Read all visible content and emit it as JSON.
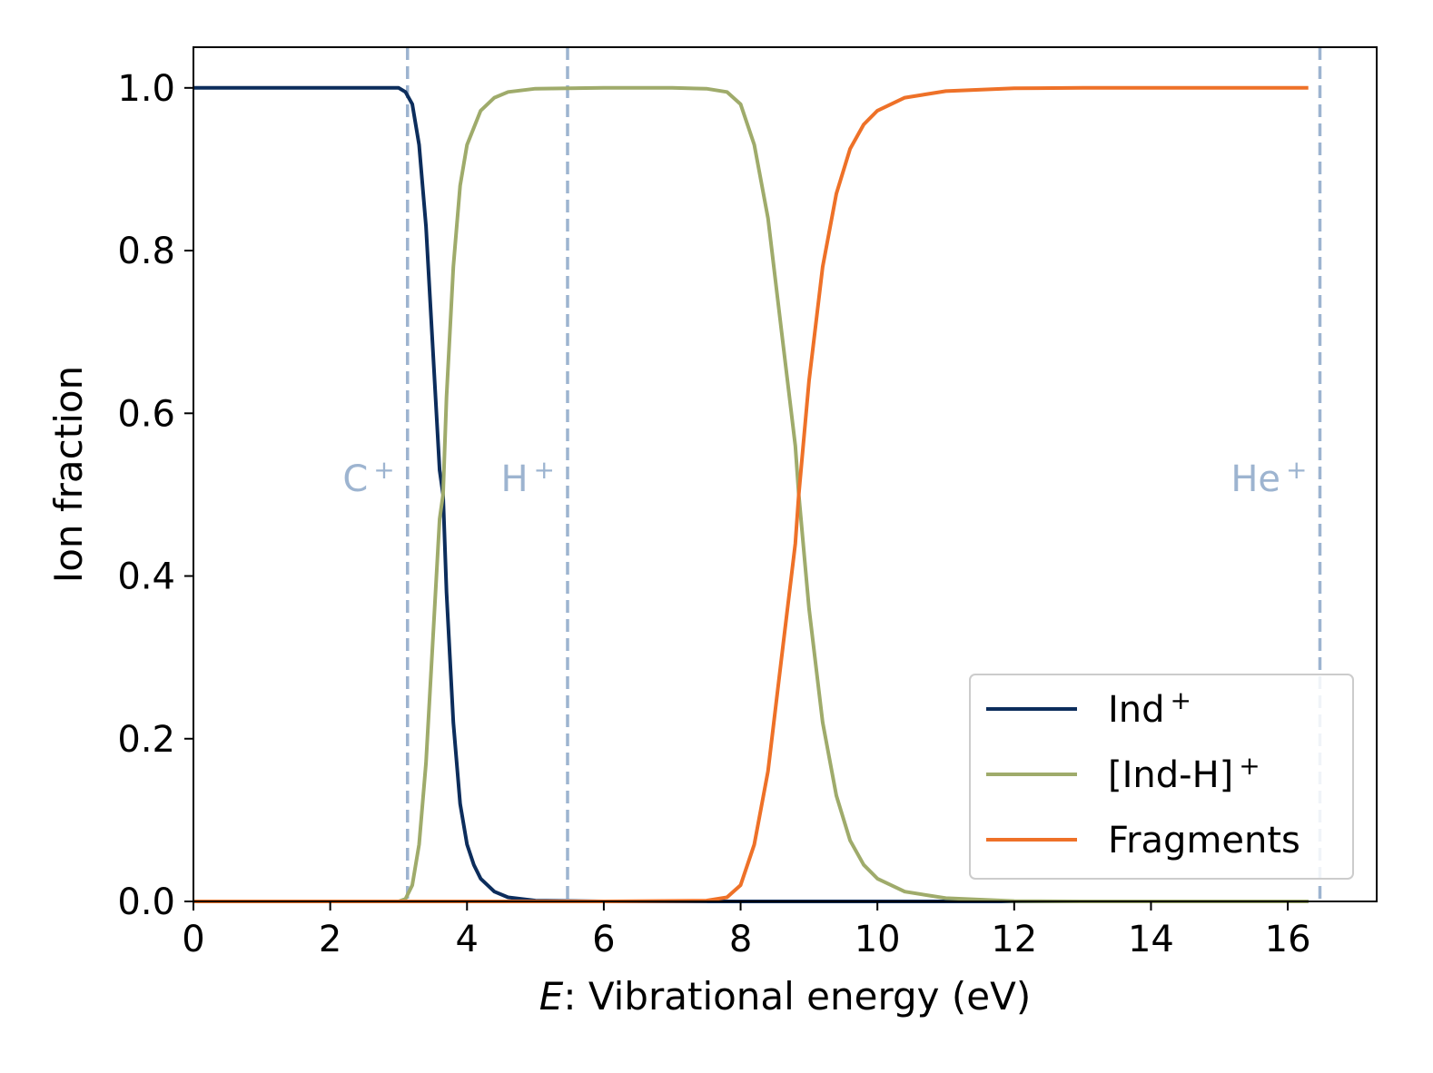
{
  "chart_data": {
    "type": "line",
    "title": "",
    "xlabel_italic": "E",
    "xlabel_rest": ": Vibrational energy (eV)",
    "ylabel": "Ion fraction",
    "xlim": [
      0,
      17.3
    ],
    "ylim": [
      0,
      1.05
    ],
    "xticks": [
      "0",
      "2",
      "4",
      "6",
      "8",
      "10",
      "12",
      "14",
      "16"
    ],
    "yticks": [
      "0.0",
      "0.2",
      "0.4",
      "0.6",
      "0.8",
      "1.0"
    ],
    "series": [
      {
        "name": "Ind",
        "name_sup": "+",
        "color": "#0c2d5c",
        "x": [
          0,
          1,
          2,
          3.0,
          3.1,
          3.2,
          3.3,
          3.4,
          3.5,
          3.6,
          3.65,
          3.7,
          3.8,
          3.9,
          4.0,
          4.1,
          4.2,
          4.4,
          4.6,
          5.0,
          6,
          8,
          10,
          12,
          14,
          16.3
        ],
        "values": [
          1.0,
          1.0,
          1.0,
          1.0,
          0.995,
          0.98,
          0.93,
          0.83,
          0.68,
          0.53,
          0.5,
          0.38,
          0.22,
          0.12,
          0.07,
          0.045,
          0.028,
          0.012,
          0.005,
          0.001,
          0.0,
          0.0,
          0.0,
          0.0,
          0.0,
          0.0
        ]
      },
      {
        "name": "[Ind-H]",
        "name_sup": "+",
        "color": "#9fab6b",
        "x": [
          0,
          3.0,
          3.1,
          3.2,
          3.3,
          3.4,
          3.5,
          3.6,
          3.65,
          3.7,
          3.8,
          3.9,
          4.0,
          4.2,
          4.4,
          4.6,
          5.0,
          6,
          7.0,
          7.5,
          7.8,
          8.0,
          8.2,
          8.4,
          8.6,
          8.8,
          8.85,
          9.0,
          9.2,
          9.4,
          9.6,
          9.8,
          10.0,
          10.4,
          11.0,
          12.0,
          13,
          16.3
        ],
        "values": [
          0.0,
          0.0,
          0.003,
          0.02,
          0.07,
          0.17,
          0.32,
          0.47,
          0.5,
          0.62,
          0.78,
          0.88,
          0.93,
          0.972,
          0.988,
          0.995,
          0.999,
          1.0,
          1.0,
          0.999,
          0.995,
          0.98,
          0.93,
          0.84,
          0.7,
          0.56,
          0.5,
          0.36,
          0.22,
          0.13,
          0.075,
          0.045,
          0.028,
          0.012,
          0.004,
          0.0005,
          0.0,
          0.0
        ]
      },
      {
        "name": "Fragments",
        "name_sup": "",
        "color": "#ee7128",
        "x": [
          0,
          2,
          4,
          6,
          7.5,
          7.8,
          8.0,
          8.2,
          8.4,
          8.6,
          8.8,
          8.85,
          9.0,
          9.2,
          9.4,
          9.6,
          9.8,
          10.0,
          10.4,
          11.0,
          12.0,
          13,
          16.3
        ],
        "values": [
          0.0,
          0.0,
          0.0,
          0.0,
          0.001,
          0.005,
          0.02,
          0.07,
          0.16,
          0.3,
          0.44,
          0.5,
          0.64,
          0.78,
          0.87,
          0.925,
          0.955,
          0.972,
          0.988,
          0.996,
          0.9995,
          1.0,
          1.0
        ]
      }
    ],
    "vlines": [
      {
        "x": 3.13,
        "label": "C",
        "sup": "+"
      },
      {
        "x": 5.47,
        "label": "H",
        "sup": "+"
      },
      {
        "x": 16.47,
        "label": "He",
        "sup": "+"
      }
    ],
    "vline_color": "#9db4d0",
    "legend_position": "lower-right"
  }
}
